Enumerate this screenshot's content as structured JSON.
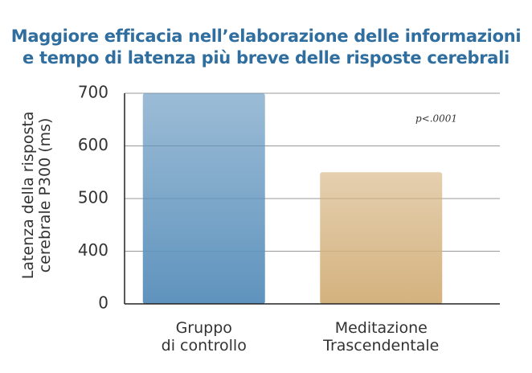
{
  "chart_data": {
    "type": "bar",
    "title": "Maggiore efficacia nell’elaborazione delle informazioni\ne tempo di latenza più breve delle risposte cerebrali",
    "y_label": "Latenza della risposta\ncerebrale P300 (ms)",
    "categories": [
      "Gruppo\ndi controllo",
      "Meditazione\nTrascendentale"
    ],
    "values": [
      700,
      550
    ],
    "colors": [
      "#5f93bd",
      "#d4b27e"
    ],
    "annotation": "p<.0001",
    "ylim": [
      0,
      700
    ],
    "yticks": [
      0,
      400,
      500,
      600,
      700
    ],
    "grid": true
  }
}
